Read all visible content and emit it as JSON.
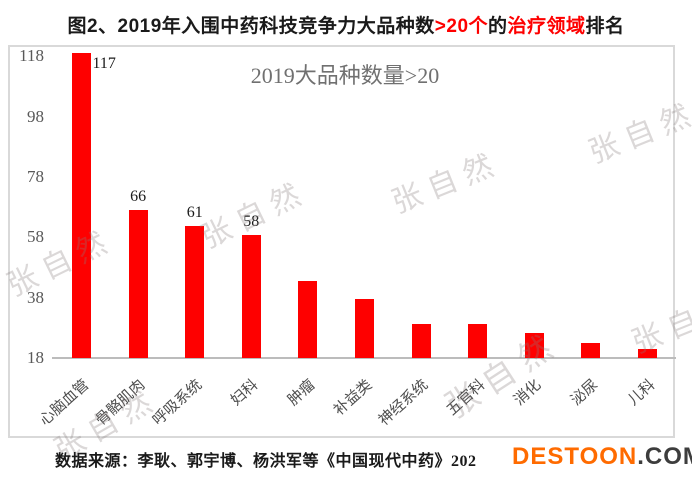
{
  "title": {
    "parts": [
      {
        "text": "图2、2019年入围中药科技竞争力大品种数",
        "color": "#1a1a1a"
      },
      {
        "text": ">20个",
        "color": "#fe0000"
      },
      {
        "text": "的",
        "color": "#1a1a1a"
      },
      {
        "text": "治疗领域",
        "color": "#fe0000"
      },
      {
        "text": "排名",
        "color": "#1a1a1a"
      }
    ]
  },
  "chart_data": {
    "type": "bar",
    "title": "2019大品种数量>20",
    "categories": [
      "心脑血管",
      "骨骼肌肉",
      "呼吸系统",
      "妇科",
      "肿瘤",
      "补益类",
      "神经系统",
      "五官科",
      "消化",
      "泌尿",
      "儿科"
    ],
    "values": [
      117,
      66,
      61,
      58,
      43,
      37,
      29,
      29,
      26,
      23,
      21
    ],
    "shown_data_labels": [
      "117",
      "66",
      "61",
      "58",
      "",
      "",
      "",
      "",
      "",
      "",
      ""
    ],
    "xlabel": "",
    "ylabel": "",
    "y_ticks": [
      118,
      98,
      78,
      58,
      38,
      18
    ],
    "ylim": [
      18,
      118
    ],
    "grid": false,
    "legend": "none",
    "bar_color": "#fe0000"
  },
  "caption": {
    "text": "数据来源：李耿、郭宇博、杨洪军等《中国现代中药》202"
  },
  "watermarks": {
    "repeat_text": "张自然",
    "site": {
      "orange_part": "DESTOON",
      "dark_part": ".COM"
    }
  },
  "colors": {
    "bar_red": "#fe0000",
    "accent_red": "#fe0000",
    "axis_text_gray": "#595959",
    "annotation_gray": "#707070",
    "box_border_gray": "#d9d9d9",
    "site_orange": "#ff6b00",
    "site_dark": "#3d3d3d"
  }
}
